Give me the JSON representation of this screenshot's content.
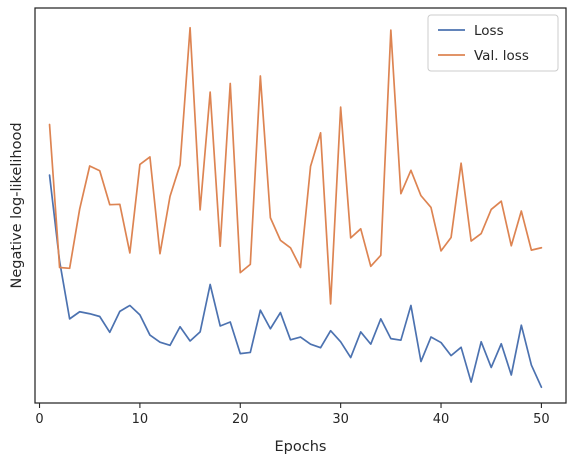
{
  "chart_data": {
    "type": "line",
    "title": "",
    "xlabel": "Epochs",
    "ylabel": "Negative log-likelihood",
    "xlim": [
      -0.45,
      52.45
    ],
    "ylim": [
      0,
      1
    ],
    "xticks": [
      0,
      10,
      20,
      30,
      40,
      50
    ],
    "yticks_shown": false,
    "grid": false,
    "legend_position": "top-right",
    "x": [
      1,
      2,
      3,
      4,
      5,
      6,
      7,
      8,
      9,
      10,
      11,
      12,
      13,
      14,
      15,
      16,
      17,
      18,
      19,
      20,
      21,
      22,
      23,
      24,
      25,
      26,
      27,
      28,
      29,
      30,
      31,
      32,
      33,
      34,
      35,
      36,
      37,
      38,
      39,
      40,
      41,
      42,
      43,
      44,
      45,
      46,
      47,
      48,
      49,
      50
    ],
    "series": [
      {
        "name": "Loss",
        "color": "#4c72b0",
        "values": [
          0.577,
          0.359,
          0.213,
          0.231,
          0.226,
          0.219,
          0.179,
          0.232,
          0.247,
          0.223,
          0.172,
          0.154,
          0.146,
          0.193,
          0.157,
          0.18,
          0.3,
          0.195,
          0.205,
          0.125,
          0.128,
          0.235,
          0.188,
          0.229,
          0.16,
          0.167,
          0.149,
          0.14,
          0.183,
          0.155,
          0.115,
          0.18,
          0.149,
          0.213,
          0.163,
          0.159,
          0.247,
          0.105,
          0.167,
          0.153,
          0.12,
          0.141,
          0.053,
          0.155,
          0.09,
          0.15,
          0.071,
          0.197,
          0.096,
          0.04
        ]
      },
      {
        "name": "Val. loss",
        "color": "#dd8452",
        "values": [
          0.705,
          0.343,
          0.341,
          0.491,
          0.6,
          0.588,
          0.502,
          0.503,
          0.38,
          0.604,
          0.623,
          0.378,
          0.523,
          0.603,
          0.95,
          0.489,
          0.787,
          0.397,
          0.809,
          0.33,
          0.351,
          0.828,
          0.469,
          0.412,
          0.393,
          0.343,
          0.599,
          0.684,
          0.251,
          0.749,
          0.418,
          0.441,
          0.346,
          0.374,
          0.944,
          0.53,
          0.589,
          0.525,
          0.495,
          0.385,
          0.419,
          0.607,
          0.41,
          0.429,
          0.49,
          0.511,
          0.398,
          0.486,
          0.387,
          0.393
        ]
      }
    ]
  }
}
